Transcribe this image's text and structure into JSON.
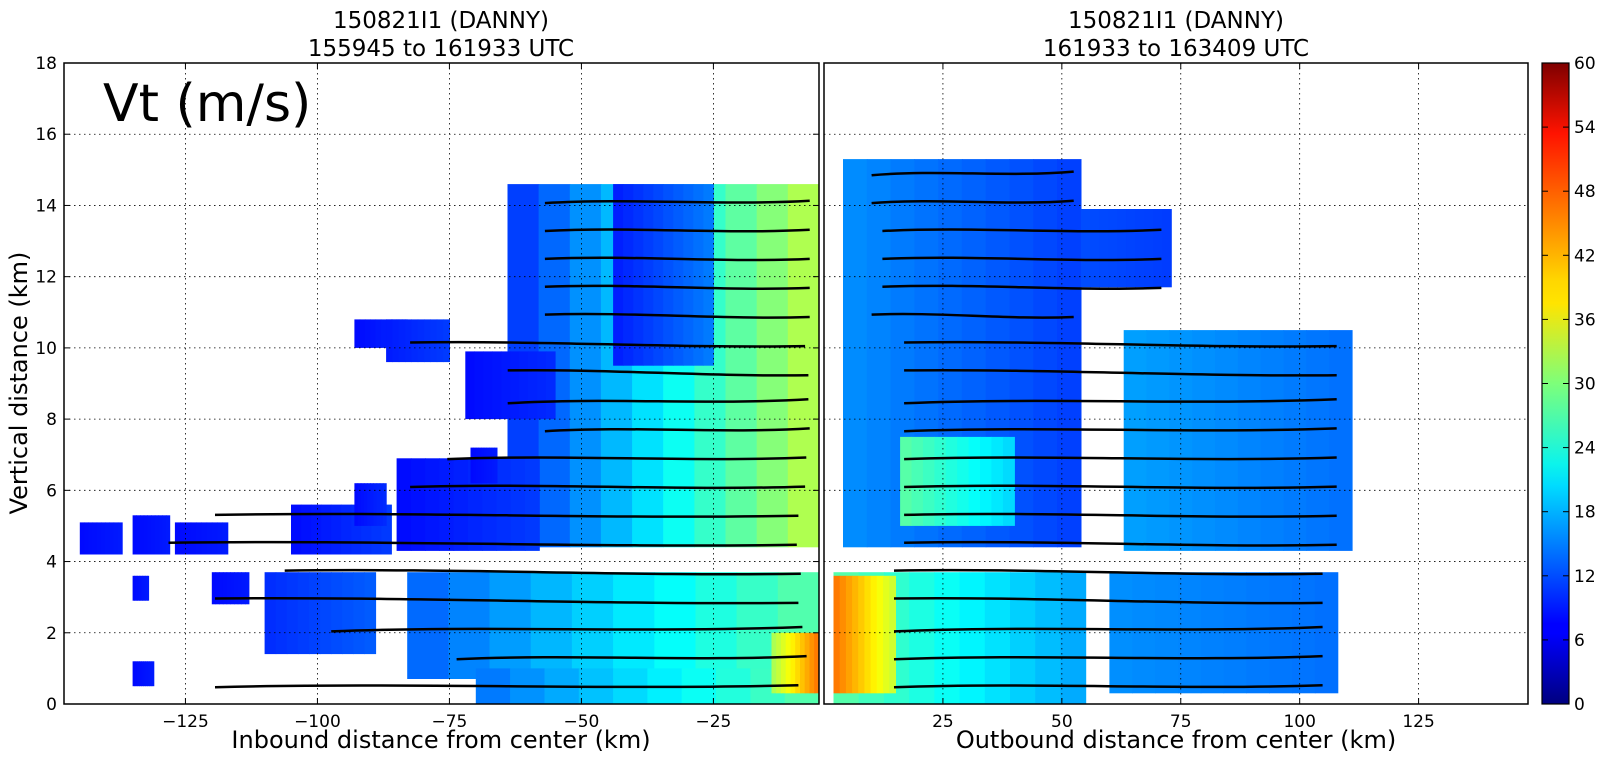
{
  "chart_data": {
    "type": "heatmap",
    "variable_label": "Vt (m/s)",
    "ylabel": "Vertical distance (km)",
    "ylim": [
      0,
      18
    ],
    "yticks": [
      "0",
      "2",
      "4",
      "6",
      "8",
      "10",
      "12",
      "14",
      "16",
      "18"
    ],
    "grid": true,
    "colorbar": {
      "colormap": "jet",
      "range": [
        0,
        60
      ],
      "ticks": [
        "0",
        "6",
        "12",
        "18",
        "24",
        "30",
        "36",
        "42",
        "48",
        "54",
        "60"
      ]
    },
    "panels": [
      {
        "id": "inbound",
        "title_line1": "150821I1 (DANNY)",
        "title_line2": "155945 to 161933 UTC",
        "xlabel": "Inbound distance from center (km)",
        "xlim": [
          -148,
          -5
        ],
        "xticks": [
          {
            "v": -125,
            "label": "−125"
          },
          {
            "v": -100,
            "label": "−100"
          },
          {
            "v": -75,
            "label": "−75"
          },
          {
            "v": -50,
            "label": "−50"
          },
          {
            "v": -25,
            "label": "−25"
          }
        ],
        "regions": [
          {
            "x0": -64,
            "x1": -5,
            "y0": 4.4,
            "y1": 14.6,
            "v0": 10,
            "v1": 34
          },
          {
            "x0": -44,
            "x1": -25,
            "y0": 9.5,
            "y1": 14.6,
            "v0": 9,
            "v1": 15
          },
          {
            "x0": -85,
            "x1": -58,
            "y0": 4.3,
            "y1": 6.9,
            "v0": 8,
            "v1": 11
          },
          {
            "x0": -72,
            "x1": -55,
            "y0": 8.0,
            "y1": 9.9,
            "v0": 8,
            "v1": 10
          },
          {
            "x0": -93,
            "x1": -83,
            "y0": 10.0,
            "y1": 10.8,
            "v0": 8,
            "v1": 10
          },
          {
            "x0": -87,
            "x1": -75,
            "y0": 9.6,
            "y1": 10.8,
            "v0": 9,
            "v1": 11
          },
          {
            "x0": -105,
            "x1": -86,
            "y0": 4.2,
            "y1": 5.6,
            "v0": 8,
            "v1": 11
          },
          {
            "x0": -93,
            "x1": -87,
            "y0": 5.0,
            "y1": 6.2,
            "v0": 8,
            "v1": 10
          },
          {
            "x0": -71,
            "x1": -66,
            "y0": 6.2,
            "y1": 7.2,
            "v0": 8,
            "v1": 9
          },
          {
            "x0": -145,
            "x1": -137,
            "y0": 4.2,
            "y1": 5.1,
            "v0": 8,
            "v1": 9
          },
          {
            "x0": -135,
            "x1": -128,
            "y0": 4.2,
            "y1": 5.3,
            "v0": 8,
            "v1": 9
          },
          {
            "x0": -127,
            "x1": -117,
            "y0": 4.2,
            "y1": 5.1,
            "v0": 8,
            "v1": 9
          },
          {
            "x0": -83,
            "x1": -5,
            "y0": 0.7,
            "y1": 3.7,
            "v0": 13,
            "v1": 28
          },
          {
            "x0": -70,
            "x1": -5,
            "y0": 0.0,
            "y1": 1.0,
            "v0": 14,
            "v1": 28
          },
          {
            "x0": -14,
            "x1": -5,
            "y0": 0.3,
            "y1": 2.0,
            "v0": 32,
            "v1": 46
          },
          {
            "x0": -110,
            "x1": -89,
            "y0": 1.4,
            "y1": 3.7,
            "v0": 10,
            "v1": 13
          },
          {
            "x0": -120,
            "x1": -113,
            "y0": 2.8,
            "y1": 3.7,
            "v0": 8,
            "v1": 9
          },
          {
            "x0": -135,
            "x1": -132,
            "y0": 2.9,
            "y1": 3.6,
            "v0": 8,
            "v1": 9
          },
          {
            "x0": -135,
            "x1": -131,
            "y0": 0.5,
            "y1": 1.2,
            "v0": 8,
            "v1": 9
          }
        ]
      },
      {
        "id": "outbound",
        "title_line1": "150821I1 (DANNY)",
        "title_line2": "161933 to 163409 UTC",
        "xlabel": "Outbound distance from center (km)",
        "xlim": [
          0,
          148
        ],
        "xticks": [
          {
            "v": 25,
            "label": "25"
          },
          {
            "v": 50,
            "label": "50"
          },
          {
            "v": 75,
            "label": "75"
          },
          {
            "v": 100,
            "label": "100"
          },
          {
            "v": 125,
            "label": "125"
          }
        ],
        "regions": [
          {
            "x0": 4,
            "x1": 54,
            "y0": 4.4,
            "y1": 15.3,
            "v0": 16,
            "v1": 11
          },
          {
            "x0": 16,
            "x1": 40,
            "y0": 5.0,
            "y1": 7.5,
            "v0": 28,
            "v1": 20
          },
          {
            "x0": 54,
            "x1": 73,
            "y0": 11.7,
            "y1": 13.9,
            "v0": 12,
            "v1": 11
          },
          {
            "x0": 63,
            "x1": 111,
            "y0": 4.3,
            "y1": 10.5,
            "v0": 17,
            "v1": 14
          },
          {
            "x0": 2,
            "x1": 55,
            "y0": 0.0,
            "y1": 3.7,
            "v0": 28,
            "v1": 17
          },
          {
            "x0": 2,
            "x1": 15,
            "y0": 0.3,
            "y1": 3.6,
            "v0": 46,
            "v1": 34
          },
          {
            "x0": 60,
            "x1": 108,
            "y0": 0.3,
            "y1": 3.7,
            "v0": 16,
            "v1": 14
          }
        ]
      }
    ]
  }
}
